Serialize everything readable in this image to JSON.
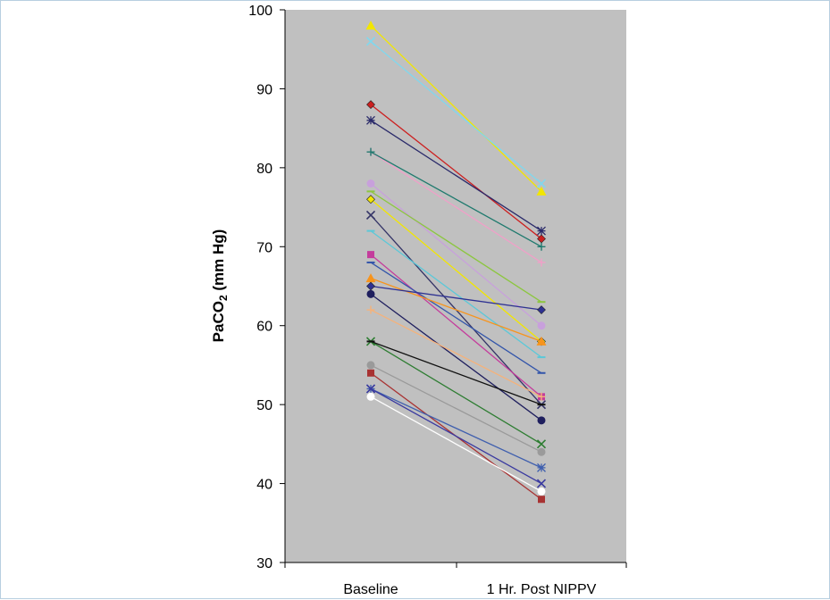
{
  "chart_data": {
    "type": "line",
    "title": "",
    "xlabel": "",
    "ylabel": "PaCO2 (mm Hg)",
    "ylabel_parts": [
      "PaCO",
      "2",
      " (mm Hg)"
    ],
    "categories": [
      "Baseline",
      "1 Hr. Post NIPPV"
    ],
    "ylim": [
      30,
      100
    ],
    "yticks": [
      30,
      40,
      50,
      60,
      70,
      80,
      90,
      100
    ],
    "plot_background": "#c0c0c0",
    "grid": false,
    "legend": "none",
    "series": [
      {
        "values": [
          98,
          77
        ],
        "color": "#f2e600",
        "marker": "triangle"
      },
      {
        "values": [
          96,
          78
        ],
        "color": "#7fd8ee",
        "marker": "x"
      },
      {
        "values": [
          88,
          71
        ],
        "color": "#cc1f1f",
        "marker": "diamond"
      },
      {
        "values": [
          86,
          72
        ],
        "color": "#2a2a6a",
        "marker": "star"
      },
      {
        "values": [
          82,
          68
        ],
        "color": "#f0a0c8",
        "marker": "plus"
      },
      {
        "values": [
          82,
          70
        ],
        "color": "#1f7a6e",
        "marker": "plus"
      },
      {
        "values": [
          78,
          60
        ],
        "color": "#c8a0dc",
        "marker": "circle"
      },
      {
        "values": [
          77,
          63
        ],
        "color": "#8cc63f",
        "marker": "dash"
      },
      {
        "values": [
          76,
          58
        ],
        "color": "#f2e600",
        "marker": "diamond"
      },
      {
        "values": [
          74,
          50
        ],
        "color": "#333366",
        "marker": "x"
      },
      {
        "values": [
          72,
          56
        ],
        "color": "#5bc8d8",
        "marker": "dash"
      },
      {
        "values": [
          69,
          51
        ],
        "color": "#c43c9c",
        "marker": "square"
      },
      {
        "values": [
          68,
          54
        ],
        "color": "#3355aa",
        "marker": "dash"
      },
      {
        "values": [
          66,
          58
        ],
        "color": "#f7941d",
        "marker": "triangle"
      },
      {
        "values": [
          65,
          62
        ],
        "color": "#2e3192",
        "marker": "diamond"
      },
      {
        "values": [
          64,
          48
        ],
        "color": "#1f1f5e",
        "marker": "circle"
      },
      {
        "values": [
          62,
          51
        ],
        "color": "#f5b27a",
        "marker": "plus"
      },
      {
        "values": [
          58,
          45
        ],
        "color": "#2e7d32",
        "marker": "x"
      },
      {
        "values": [
          58,
          50
        ],
        "color": "#111111",
        "marker": "dash"
      },
      {
        "values": [
          55,
          44
        ],
        "color": "#9a9a9a",
        "marker": "circle"
      },
      {
        "values": [
          54,
          38
        ],
        "color": "#a83232",
        "marker": "square"
      },
      {
        "values": [
          52,
          42
        ],
        "color": "#3f5fae",
        "marker": "star"
      },
      {
        "values": [
          52,
          40
        ],
        "color": "#3a3aa0",
        "marker": "x"
      },
      {
        "values": [
          51,
          39
        ],
        "color": "#ffffff",
        "marker": "circle"
      }
    ]
  }
}
